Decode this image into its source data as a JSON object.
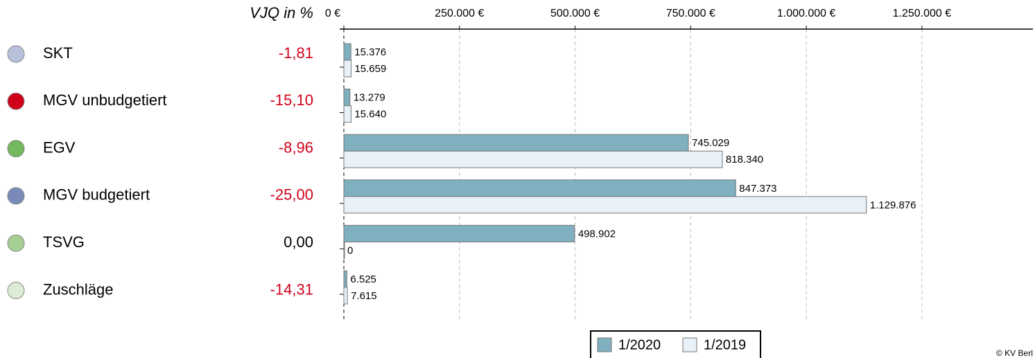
{
  "chart_data": {
    "type": "bar",
    "orientation": "horizontal",
    "categories": [
      "SKT",
      "MGV unbudgetiert",
      "EGV",
      "MGV budgetiert",
      "TSVG",
      "Zuschläge"
    ],
    "category_colors": [
      "#b8c0dc",
      "#d0021b",
      "#72b85c",
      "#7a8ab8",
      "#a6cf94",
      "#dcebd4"
    ],
    "change_header": "VJQ in %",
    "change_values": [
      -1.81,
      -15.1,
      -8.96,
      -25.0,
      0.0,
      -14.31
    ],
    "change_labels": [
      "-1,81",
      "-15,10",
      "-8,96",
      "-25,00",
      "0,00",
      "-14,31"
    ],
    "series": [
      {
        "name": "1/2020",
        "color": "#7fb0bf",
        "values": [
          15376,
          13279,
          745029,
          847373,
          498902,
          6525
        ],
        "value_labels": [
          "15.376",
          "13.279",
          "745.029",
          "847.373",
          "498.902",
          "6.525"
        ]
      },
      {
        "name": "1/2019",
        "color": "#e8f0f8",
        "values": [
          15659,
          15640,
          818340,
          1129876,
          0,
          7615
        ],
        "value_labels": [
          "15.659",
          "15.640",
          "818.340",
          "1.129.876",
          "0",
          "7.615"
        ]
      }
    ],
    "xlim": [
      0,
      1490000
    ],
    "xticks": [
      {
        "value": 0,
        "label": "0 €"
      },
      {
        "value": 250000,
        "label": "250.000 €"
      },
      {
        "value": 500000,
        "label": "500.000 €"
      },
      {
        "value": 750000,
        "label": "750.000 €"
      },
      {
        "value": 1000000,
        "label": "1.000.000 €"
      },
      {
        "value": 1250000,
        "label": "1.250.000 €"
      }
    ],
    "grid": true,
    "legend": "bottom",
    "copyright": "© KV Berl"
  }
}
